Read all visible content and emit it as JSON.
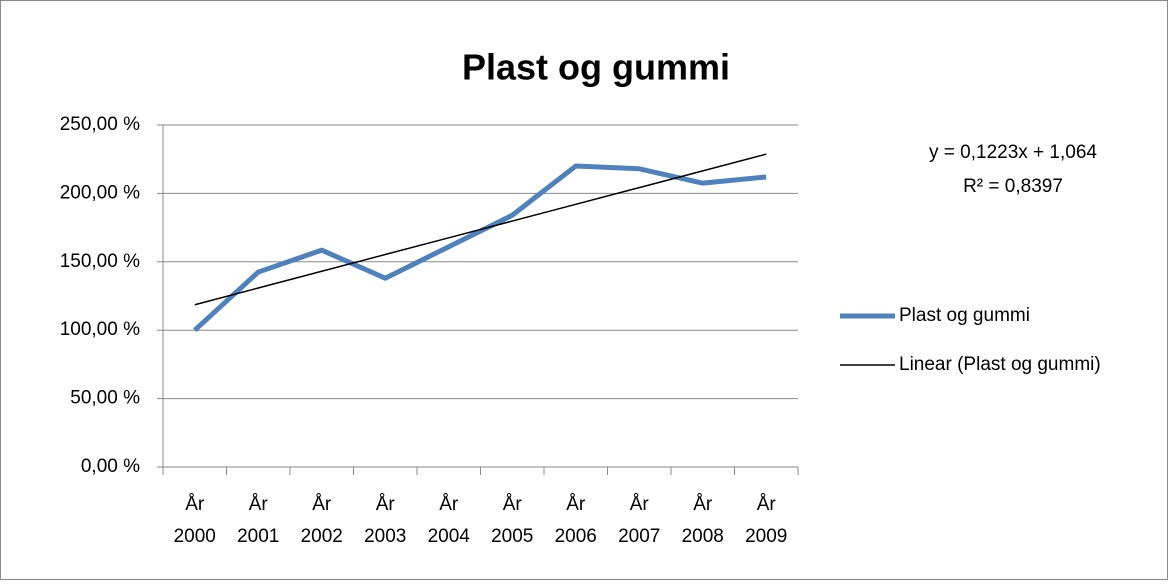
{
  "chart_data": {
    "type": "line",
    "title": "Plast og gummi",
    "categories": [
      "År 2000",
      "År 2001",
      "År 2002",
      "År 2003",
      "År 2004",
      "År 2005",
      "År 2006",
      "År 2007",
      "År 2008",
      "År 2009"
    ],
    "series": [
      {
        "name": "Plast og gummi",
        "color": "#4f81bd",
        "values": [
          100,
          142.5,
          158.5,
          138,
          161,
          184,
          220,
          218,
          207.5,
          212
        ]
      },
      {
        "name": "Linear (Plast og gummi)",
        "color": "#000000",
        "values": [
          118.63,
          130.86,
          143.09,
          155.32,
          167.55,
          179.78,
          192.01,
          204.24,
          216.47,
          228.7
        ]
      }
    ],
    "annotations": [
      "y = 0,1223x + 1,064",
      "R² = 0,8397"
    ],
    "ylim": [
      0,
      250
    ],
    "yticks": [
      {
        "value": 0,
        "label": "0,00 %"
      },
      {
        "value": 50,
        "label": "50,00 %"
      },
      {
        "value": 100,
        "label": "100,00 %"
      },
      {
        "value": 150,
        "label": "150,00 %"
      },
      {
        "value": 200,
        "label": "200,00 %"
      },
      {
        "value": 250,
        "label": "250,00 %"
      }
    ],
    "grid": true,
    "legend": "right"
  }
}
